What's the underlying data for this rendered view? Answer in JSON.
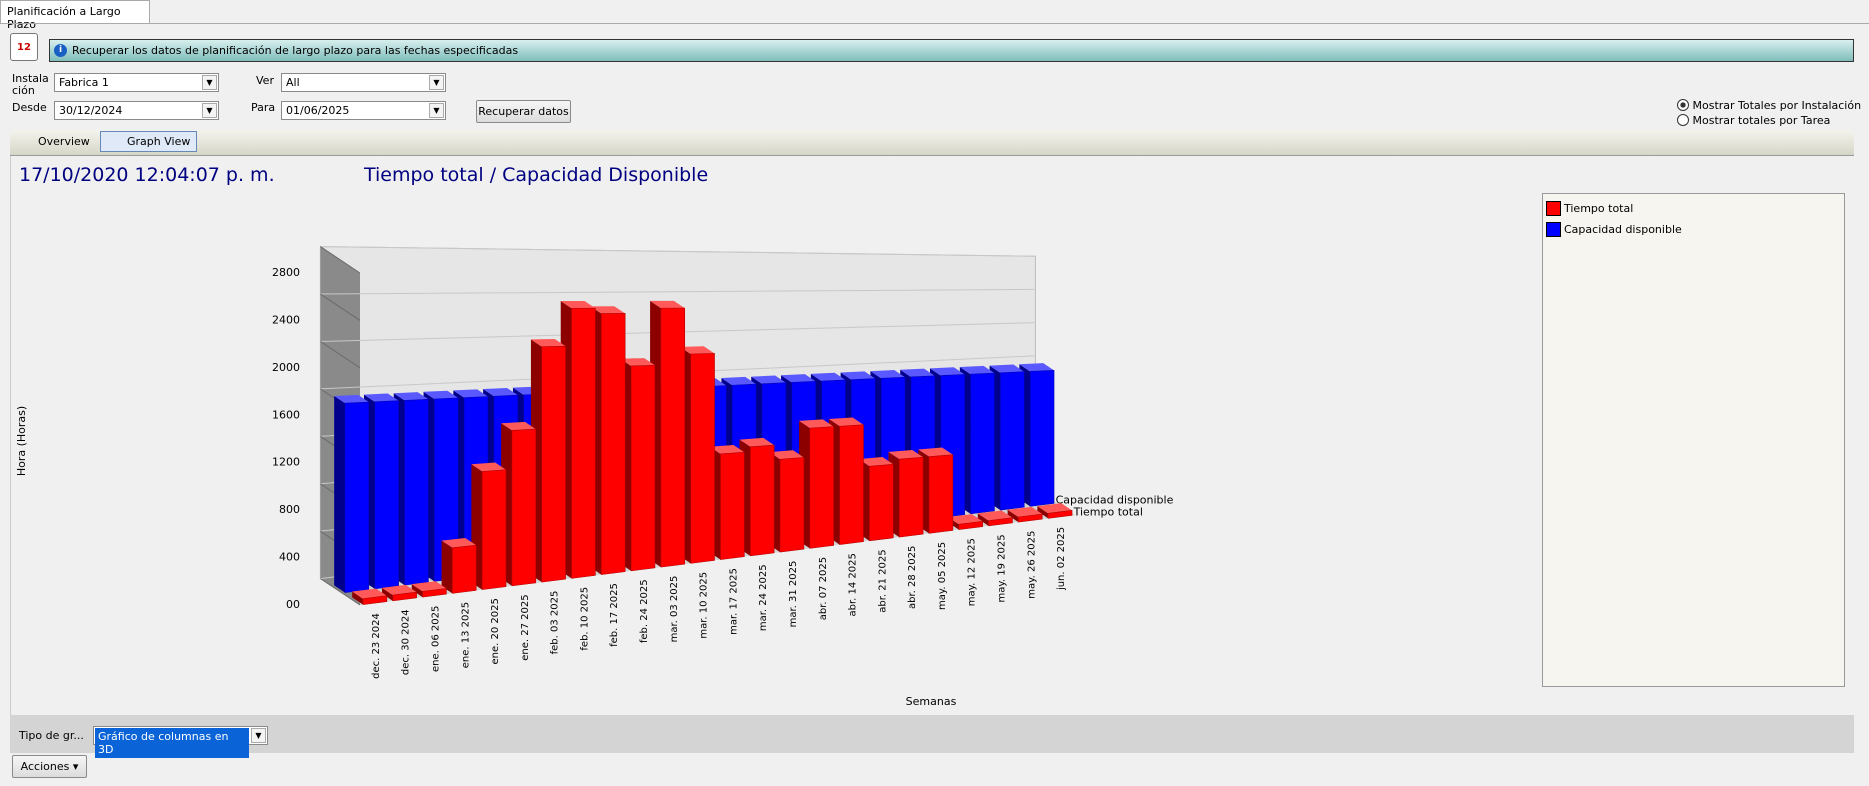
{
  "tab": "Planificación a Largo Plazo",
  "info": "Recuperar los datos de planificación de largo plazo para las fechas especificadas",
  "form": {
    "installation_label": "Instalación",
    "installation": "Fabrica 1",
    "view_label": "Ver",
    "view": "All",
    "from_label": "Desde",
    "from": "30/12/2024",
    "to_label": "Para",
    "to": "01/06/2025",
    "button": "Recuperar datos",
    "radios": [
      "Mostrar Totales por Instalación",
      "Mostrar totales por Tarea"
    ]
  },
  "tabs": [
    "Overview",
    "Graph View"
  ],
  "timestamp": "17/10/2020 12:04:07 p. m.",
  "chart_data": {
    "type": "bar3d",
    "title": "Tiempo total / Capacidad Disponible",
    "x_label": "Semanas",
    "y_label": "Hora (Horas)",
    "categories": [
      "dec. 23 2024",
      "dec. 30 2024",
      "ene. 06 2025",
      "ene. 13 2025",
      "ene. 20 2025",
      "ene. 27 2025",
      "feb. 03 2025",
      "feb. 10 2025",
      "feb. 17 2025",
      "feb. 24 2025",
      "mar. 03 2025",
      "mar. 10 2025",
      "mar. 17 2025",
      "mar. 24 2025",
      "mar. 31 2025",
      "abr. 07 2025",
      "abr. 14 2025",
      "abr. 21 2025",
      "abr. 28 2025",
      "may. 05 2025",
      "may. 12 2025",
      "may. 19 2025",
      "may. 26 2025",
      "jun. 02 2025"
    ],
    "series": [
      {
        "name": "Tiempo total",
        "color": "#ff0000",
        "values": [
          50,
          50,
          50,
          400,
          1050,
          1400,
          2150,
          2500,
          2450,
          1950,
          2500,
          2050,
          1050,
          1100,
          950,
          1250,
          1250,
          800,
          850,
          850,
          60,
          60,
          60,
          60
        ]
      },
      {
        "name": "Capacidad disponible",
        "color": "#0000ff",
        "values": [
          1600,
          1600,
          1600,
          1600,
          1600,
          1600,
          1600,
          1600,
          1600,
          1600,
          1600,
          1600,
          1600,
          1600,
          1600,
          1600,
          1600,
          1600,
          1600,
          1600,
          1600,
          1600,
          1600,
          1600
        ]
      }
    ],
    "ylim": [
      0,
      2800
    ],
    "yticks": [
      {
        "value": 0,
        "label": "00"
      },
      400,
      800,
      1200,
      1600,
      2000,
      2400,
      2800
    ],
    "grid": true
  },
  "bottom": {
    "chart_type_label": "Tipo de gr...",
    "chart_type": "Gráfico de columnas en 3D",
    "actions": "Acciones"
  }
}
